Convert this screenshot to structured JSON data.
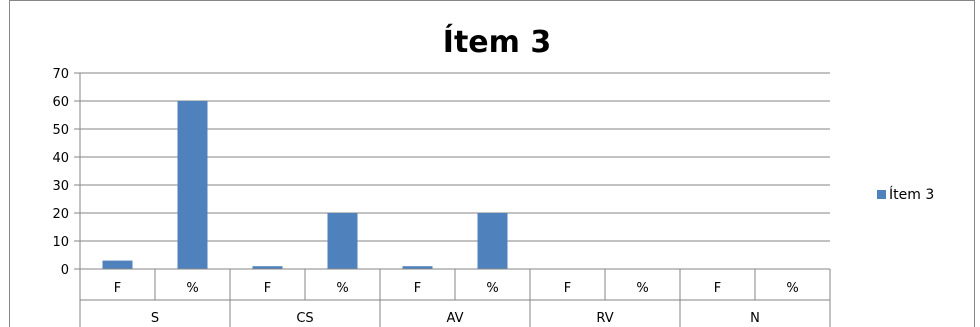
{
  "chart_data": {
    "type": "bar",
    "title": "Ítem 3",
    "xlabel": "",
    "ylabel": "",
    "ylim": [
      0,
      70
    ],
    "yticks": [
      0,
      10,
      20,
      30,
      40,
      50,
      60,
      70
    ],
    "grid": true,
    "groups": [
      "S",
      "CS",
      "AV",
      "RV",
      "N"
    ],
    "subcategories": [
      "F",
      "%"
    ],
    "categories": [
      "F",
      "%",
      "F",
      "%",
      "F",
      "%",
      "F",
      "%",
      "F",
      "%"
    ],
    "series": [
      {
        "name": "Ítem 3",
        "color": "#4f81bd",
        "values": [
          3,
          60,
          1,
          20,
          1,
          20,
          0,
          0,
          0,
          0
        ]
      }
    ],
    "legend": {
      "position": "right",
      "entries": [
        "Ítem 3"
      ]
    }
  }
}
